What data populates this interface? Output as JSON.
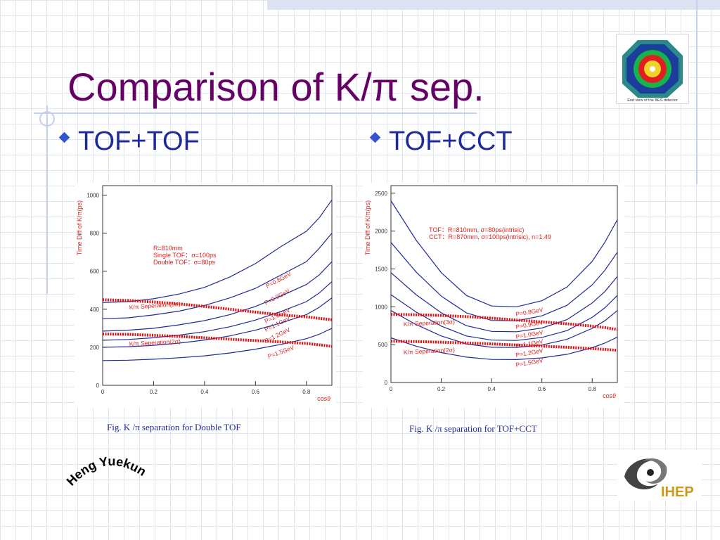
{
  "slide": {
    "title": "Comparison of K/π sep.",
    "bullet_left": "TOF+TOF",
    "bullet_right": "TOF+CCT",
    "caption_left": "Fig.  K /π separation for Double TOF",
    "caption_right": "Fig.  K /π separation for TOF+CCT",
    "author": "Heng  Yuekun",
    "logo_text": "IHEP",
    "bes_logo_caption": "End view of the BES detector"
  },
  "colors": {
    "title": "#660066",
    "bullet": "#1f2a99",
    "curve": "#1f2a99",
    "sep_line": "#e01010",
    "annotation": "#e02020"
  },
  "chart_data": [
    {
      "type": "line",
      "xlabel": "cosϑ",
      "ylabel": "Time Diff of K/π(ps)",
      "xlim": [
        0,
        0.9
      ],
      "ylim": [
        0,
        1050
      ],
      "xticks": [
        "0",
        "0.2",
        "0.4",
        "0.6",
        "0.8"
      ],
      "xtick_values": [
        0,
        0.2,
        0.4,
        0.6,
        0.8
      ],
      "yticks": [
        "0",
        "200",
        "400",
        "600",
        "800",
        "1000"
      ],
      "ytick_values": [
        0,
        200,
        400,
        600,
        800,
        1000
      ],
      "annotations": [
        "R=810mm",
        "Single TOF：σ=100ps",
        "Double TOF：σ=80ps"
      ],
      "x": [
        0,
        0.1,
        0.2,
        0.3,
        0.4,
        0.5,
        0.6,
        0.7,
        0.8,
        0.85,
        0.9
      ],
      "series": [
        {
          "name": "P=0.8GeV",
          "values": [
            435,
            440,
            455,
            480,
            515,
            570,
            640,
            730,
            810,
            880,
            975
          ]
        },
        {
          "name": "P=0.9GeV",
          "values": [
            350,
            355,
            370,
            390,
            420,
            460,
            510,
            580,
            650,
            720,
            800
          ]
        },
        {
          "name": "P=1.0GeV",
          "values": [
            285,
            290,
            300,
            318,
            340,
            372,
            415,
            470,
            530,
            580,
            650
          ]
        },
        {
          "name": "P=1.1GeV",
          "values": [
            237,
            241,
            250,
            264,
            282,
            308,
            343,
            388,
            440,
            485,
            545
          ]
        },
        {
          "name": "P=1.2GeV",
          "values": [
            200,
            203,
            210,
            222,
            238,
            260,
            290,
            328,
            372,
            410,
            460
          ]
        },
        {
          "name": "P=1.5GeV",
          "values": [
            130,
            132,
            137,
            145,
            155,
            170,
            190,
            215,
            245,
            268,
            300
          ]
        }
      ],
      "separation_lines": [
        {
          "name": "K/π Seperation(3σ)",
          "values": [
            450,
            446,
            438,
            428,
            415,
            400,
            385,
            370,
            360,
            352,
            345
          ]
        },
        {
          "name": "K/π Seperation(2σ)",
          "values": [
            270,
            268,
            263,
            257,
            250,
            242,
            235,
            228,
            220,
            213,
            205
          ]
        }
      ]
    },
    {
      "type": "line",
      "xlabel": "cosϑ",
      "ylabel": "Time Diff of K/π(ps)",
      "xlim": [
        0,
        0.9
      ],
      "ylim": [
        0,
        2600
      ],
      "xticks": [
        "0",
        "0.2",
        "0.4",
        "0.6",
        "0.8"
      ],
      "xtick_values": [
        0,
        0.2,
        0.4,
        0.6,
        0.8
      ],
      "yticks": [
        "0",
        "500",
        "1000",
        "1500",
        "2000",
        "2500"
      ],
      "ytick_values": [
        0,
        500,
        1000,
        1500,
        2000,
        2500
      ],
      "annotations": [
        "TOF：R=810mm, σ=80ps(intrisic)",
        "CCT：R=870mm, σ=100ps(intrisic), n=1.49"
      ],
      "x": [
        0,
        0.1,
        0.2,
        0.3,
        0.4,
        0.5,
        0.6,
        0.7,
        0.8,
        0.85,
        0.9
      ],
      "series": [
        {
          "name": "P=0.8GeV",
          "values": [
            2400,
            1880,
            1450,
            1150,
            1010,
            1000,
            1080,
            1260,
            1600,
            1850,
            2150
          ]
        },
        {
          "name": "P=0.9GeV",
          "values": [
            1850,
            1460,
            1140,
            920,
            820,
            815,
            880,
            1020,
            1290,
            1480,
            1720
          ]
        },
        {
          "name": "P=1.0GeV",
          "values": [
            1450,
            1160,
            920,
            750,
            675,
            670,
            720,
            830,
            1050,
            1200,
            1400
          ]
        },
        {
          "name": "P=1.1GeV",
          "values": [
            1160,
            930,
            745,
            615,
            560,
            555,
            595,
            685,
            860,
            985,
            1150
          ]
        },
        {
          "name": "P=1.2GeV",
          "values": [
            950,
            765,
            615,
            510,
            465,
            462,
            495,
            570,
            715,
            815,
            950
          ]
        },
        {
          "name": "P=1.5GeV",
          "values": [
            590,
            480,
            395,
            335,
            305,
            303,
            325,
            372,
            460,
            520,
            600
          ]
        }
      ],
      "separation_lines": [
        {
          "name": "K/π Seperation(3σ)",
          "values": [
            900,
            895,
            885,
            870,
            850,
            825,
            800,
            775,
            745,
            725,
            700
          ]
        },
        {
          "name": "K/π Seperation(2σ)",
          "values": [
            545,
            540,
            532,
            522,
            510,
            495,
            480,
            465,
            448,
            437,
            425
          ]
        }
      ]
    }
  ]
}
